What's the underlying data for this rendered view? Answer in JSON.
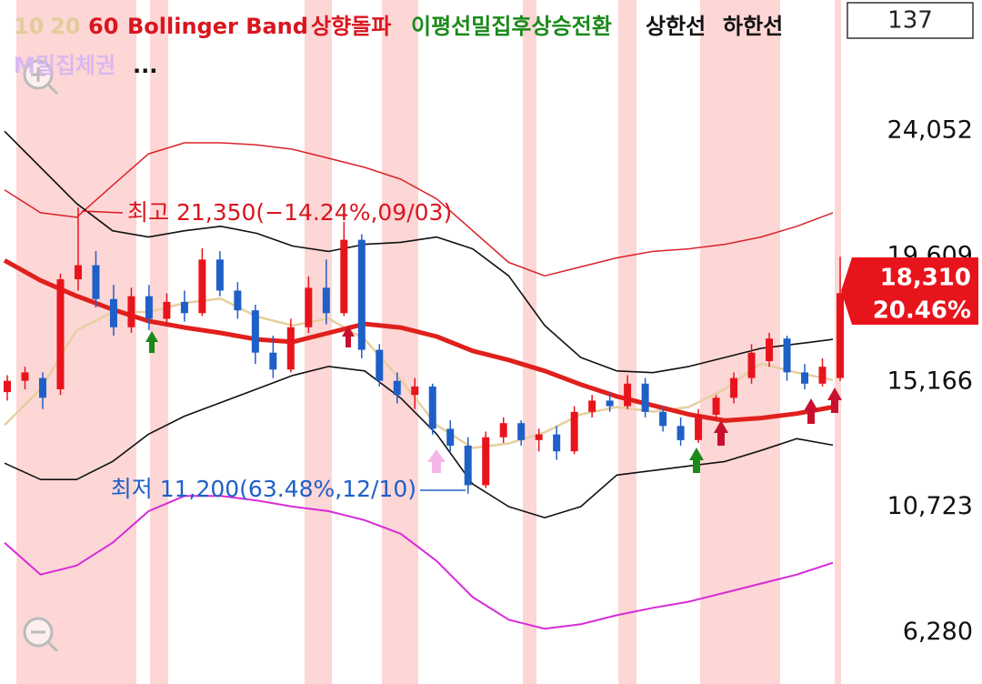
{
  "header": {
    "items": [
      {
        "text": "10",
        "color": "#e3cc9a"
      },
      {
        "text": "20",
        "color": "#e3cc9a"
      },
      {
        "text": "60",
        "color": "#d9161f"
      },
      {
        "text": "Bollinger Band",
        "color": "#d9161f"
      },
      {
        "text": "상향돌파",
        "color": "#d9161f"
      },
      {
        "text": "이평선밀집후상승전환",
        "color": "#1a8a1a"
      },
      {
        "text": "상한선",
        "color": "#111111"
      },
      {
        "text": "하한선",
        "color": "#111111"
      }
    ],
    "second_line": {
      "text": "M밀집체권",
      "color": "#d9b8f0"
    },
    "more": "...",
    "counter": "137"
  },
  "chart_data": {
    "type": "candlestick",
    "ylim": [
      4451,
      28703
    ],
    "yticks": [
      {
        "value": 24052,
        "label": "24,052"
      },
      {
        "value": 19609,
        "label": "19,609"
      },
      {
        "value": 15166,
        "label": "15,166"
      },
      {
        "value": 10723,
        "label": "10,723"
      },
      {
        "value": 6280,
        "label": "6,280"
      }
    ],
    "up_color": "#e8141c",
    "down_color": "#1f5fc8",
    "candles": [
      [
        14800,
        15400,
        14500,
        15200
      ],
      [
        15200,
        15700,
        14900,
        15500
      ],
      [
        15300,
        15500,
        14200,
        14600
      ],
      [
        14900,
        19000,
        14700,
        18800
      ],
      [
        18800,
        21350,
        18400,
        19300
      ],
      [
        19300,
        19800,
        17800,
        18100
      ],
      [
        18100,
        18600,
        16800,
        17100
      ],
      [
        17100,
        18500,
        16900,
        18200
      ],
      [
        18200,
        18600,
        17000,
        17400
      ],
      [
        17400,
        18300,
        17200,
        18000
      ],
      [
        18000,
        18400,
        17300,
        17600
      ],
      [
        17600,
        19900,
        17500,
        19500
      ],
      [
        19500,
        19800,
        18200,
        18400
      ],
      [
        18400,
        18700,
        17400,
        17700
      ],
      [
        17700,
        17900,
        15800,
        16200
      ],
      [
        16200,
        16800,
        15300,
        15600
      ],
      [
        15600,
        17400,
        15500,
        17100
      ],
      [
        17100,
        18900,
        16900,
        18500
      ],
      [
        18500,
        19500,
        17200,
        17600
      ],
      [
        17600,
        20840,
        17500,
        20200
      ],
      [
        20200,
        20400,
        16000,
        16300
      ],
      [
        16300,
        16500,
        15000,
        15200
      ],
      [
        15200,
        15500,
        14400,
        14700
      ],
      [
        14700,
        15300,
        14200,
        15000
      ],
      [
        15000,
        15100,
        13300,
        13500
      ],
      [
        13500,
        13800,
        12700,
        12900
      ],
      [
        12900,
        13200,
        11200,
        11500
      ],
      [
        11500,
        13400,
        11400,
        13200
      ],
      [
        13200,
        13900,
        13000,
        13700
      ],
      [
        13700,
        13800,
        12900,
        13100
      ],
      [
        13100,
        13500,
        12700,
        13300
      ],
      [
        13300,
        13600,
        12400,
        12700
      ],
      [
        12700,
        14300,
        12600,
        14100
      ],
      [
        14100,
        14700,
        13900,
        14500
      ],
      [
        14500,
        14800,
        14100,
        14300
      ],
      [
        14300,
        15400,
        14200,
        15100
      ],
      [
        15100,
        15300,
        13900,
        14100
      ],
      [
        14100,
        14300,
        13400,
        13600
      ],
      [
        13600,
        13900,
        12900,
        13100
      ],
      [
        13100,
        14200,
        13000,
        14000
      ],
      [
        14000,
        14700,
        13800,
        14600
      ],
      [
        14600,
        15500,
        14400,
        15300
      ],
      [
        15300,
        16500,
        15100,
        16200
      ],
      [
        15900,
        16900,
        15700,
        16700
      ],
      [
        16700,
        16800,
        15200,
        15500
      ],
      [
        15500,
        15800,
        14900,
        15100
      ],
      [
        15100,
        16000,
        15000,
        15700
      ],
      [
        15300,
        19600,
        15200,
        18310
      ]
    ],
    "series": [
      {
        "color": "#d82ad8",
        "width": 2,
        "values": [
          9460,
          8330,
          8650,
          9460,
          10580,
          11120,
          11120,
          10960,
          10740,
          10580,
          10260,
          9780,
          8810,
          7530,
          6730,
          6410,
          6570,
          6890,
          7150,
          7370,
          7690,
          8010,
          8330,
          8750
        ]
      },
      {
        "color": "#d8232a",
        "width": 1.5,
        "values": [
          21970,
          21160,
          21000,
          22130,
          23250,
          23640,
          23640,
          23570,
          23410,
          23090,
          22770,
          22350,
          21650,
          20520,
          19400,
          18920,
          19240,
          19560,
          19790,
          19880,
          20040,
          20300,
          20680,
          21160
        ]
      },
      {
        "color": "#111111",
        "width": 1.6,
        "values": [
          24050,
          22770,
          21490,
          20520,
          20300,
          20520,
          20680,
          20430,
          19980,
          19790,
          20040,
          20110,
          20300,
          19880,
          18920,
          17160,
          16030,
          15550,
          15490,
          15710,
          16030,
          16350,
          16510,
          16670
        ]
      },
      {
        "color": "#111111",
        "width": 1.6,
        "values": [
          12280,
          11700,
          11700,
          12340,
          13310,
          13950,
          14430,
          14910,
          15390,
          15710,
          15550,
          14590,
          13310,
          11540,
          10740,
          10350,
          10740,
          11860,
          12020,
          12180,
          12340,
          12730,
          13150,
          12920
        ]
      },
      {
        "color": "#e6cfa0",
        "width": 2.5,
        "values": [
          13630,
          14910,
          16990,
          17640,
          17640,
          17960,
          18120,
          17480,
          17160,
          17410,
          16670,
          15230,
          13630,
          12820,
          12980,
          13370,
          14010,
          14270,
          14110,
          14270,
          14910,
          15810,
          15490,
          15230
        ]
      },
      {
        "color": "#e0201c",
        "width": 5,
        "values": [
          19470,
          18760,
          18210,
          17730,
          17320,
          17090,
          16900,
          16670,
          16580,
          16900,
          17220,
          17090,
          16770,
          16260,
          15940,
          15550,
          15070,
          14650,
          14330,
          14010,
          13790,
          13880,
          14040,
          14270
        ]
      }
    ],
    "annotations": {
      "high": "최고 21,350(−14.24%,09/03)",
      "low": "최저 11,200(63.48%,12/10)"
    },
    "price_label": "18,310",
    "change_label": "20.46%"
  }
}
